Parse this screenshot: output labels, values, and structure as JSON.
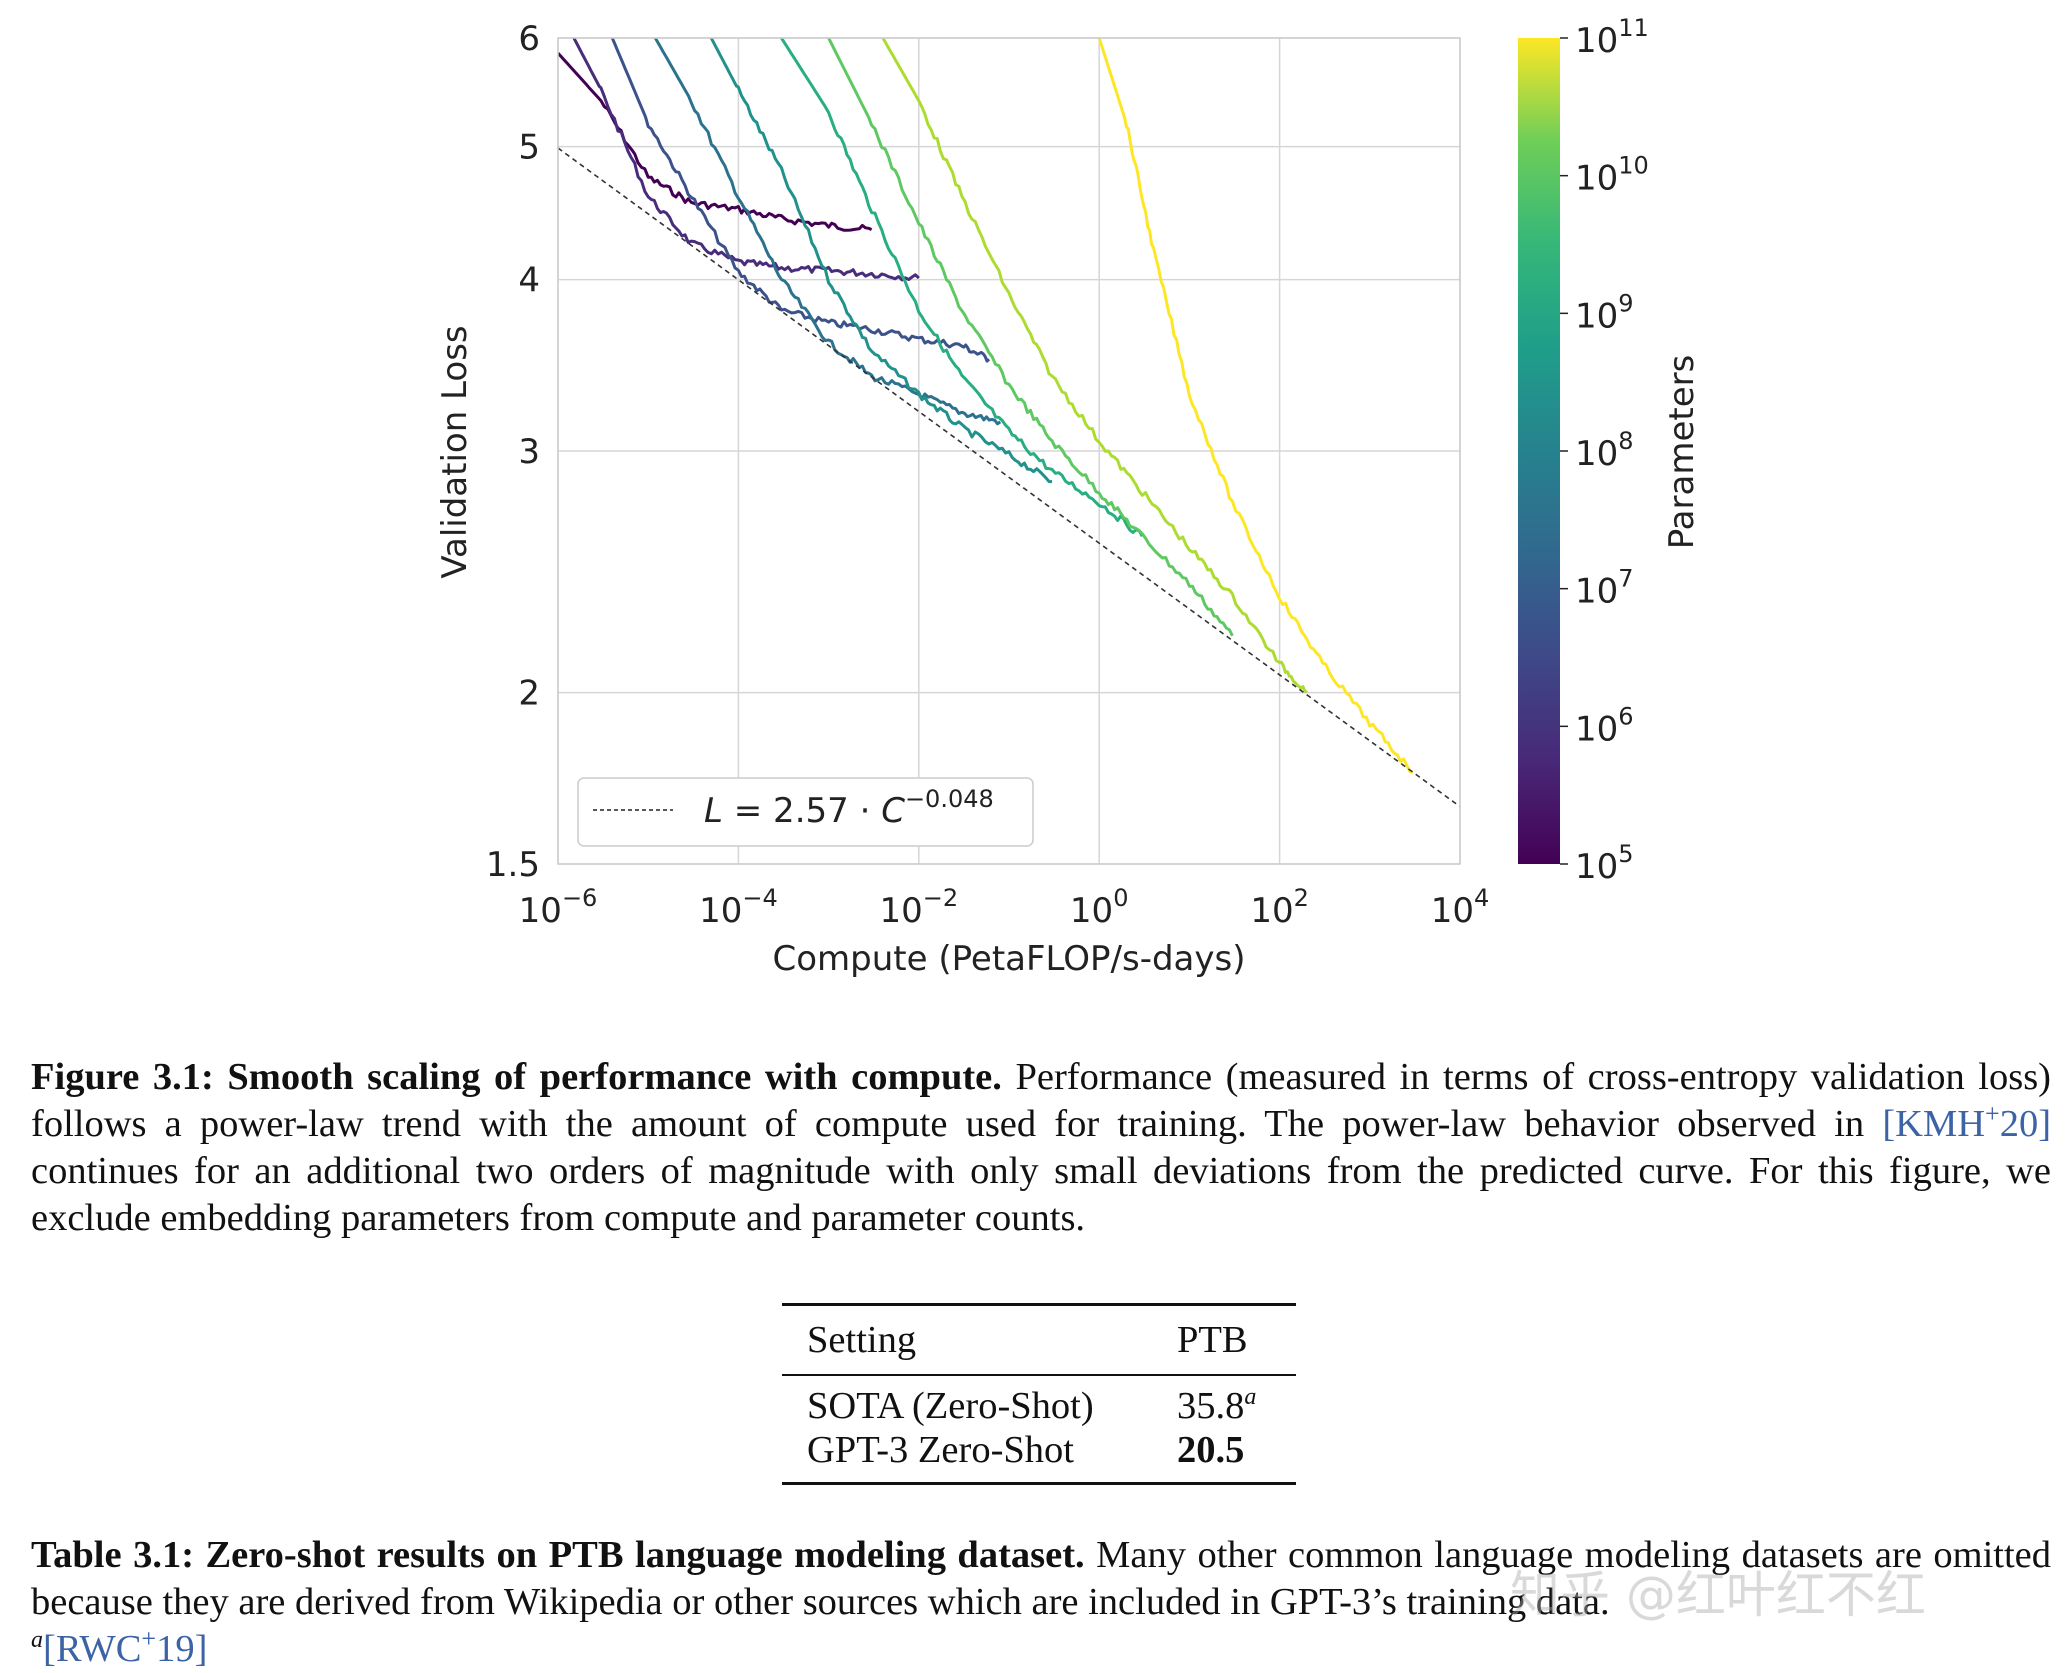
{
  "figure": {
    "chart_data": {
      "type": "line",
      "xscale": "log",
      "yscale": "log",
      "xlabel": "Compute (PetaFLOP/s-days)",
      "ylabel": "Validation Loss",
      "xlim": [
        1e-06,
        10000.0
      ],
      "ylim": [
        1.5,
        6
      ],
      "x_tick_labels": [
        "10^-6",
        "10^-4",
        "10^-2",
        "10^0",
        "10^2",
        "10^4"
      ],
      "y_tick_labels": [
        "6",
        "5",
        "4",
        "3",
        "2",
        "1.5"
      ],
      "legend": {
        "location": "bottom-left",
        "label": "L = 2.57 · C^-0.048"
      },
      "fit_line": {
        "a": 2.57,
        "b": -0.048,
        "x_range": [
          1e-06,
          10000.0
        ]
      },
      "colorbar": {
        "label": "Parameters",
        "colormap": "viridis",
        "range": [
          100000.0,
          100000000000.0
        ],
        "tick_labels": [
          "10^11",
          "10^10",
          "10^9",
          "10^8",
          "10^7",
          "10^6",
          "10^5"
        ]
      },
      "series": [
        {
          "params": 100000.0,
          "color": "#440154",
          "x": [
            1e-06,
            3e-06,
            1e-05,
            3e-05,
            0.0001,
            0.0003,
            0.001,
            0.003
          ],
          "y": [
            5.85,
            5.4,
            4.75,
            4.55,
            4.5,
            4.43,
            4.38,
            4.35
          ]
        },
        {
          "params": 300000.0,
          "color": "#472d7b",
          "x": [
            1.5e-06,
            3e-06,
            1e-05,
            3e-05,
            0.0001,
            0.0003,
            0.001,
            0.003,
            0.01
          ],
          "y": [
            6.0,
            5.5,
            4.6,
            4.25,
            4.12,
            4.08,
            4.06,
            4.04,
            4.01
          ]
        },
        {
          "params": 1000000.0,
          "color": "#3b528b",
          "x": [
            4e-06,
            1e-05,
            3e-05,
            0.0001,
            0.0003,
            0.001,
            0.003,
            0.01,
            0.03,
            0.06
          ],
          "y": [
            6.0,
            5.2,
            4.6,
            4.05,
            3.8,
            3.72,
            3.68,
            3.62,
            3.58,
            3.5
          ]
        },
        {
          "params": 3000000.0,
          "color": "#2c728e",
          "x": [
            1.2e-05,
            3e-05,
            0.0001,
            0.0003,
            0.001,
            0.003,
            0.01,
            0.03,
            0.08
          ],
          "y": [
            6.0,
            5.4,
            4.6,
            4.0,
            3.6,
            3.4,
            3.3,
            3.2,
            3.15
          ]
        },
        {
          "params": 10000000.0,
          "color": "#21918c",
          "x": [
            5e-05,
            0.0001,
            0.0003,
            0.001,
            0.003,
            0.01,
            0.03,
            0.1,
            0.3
          ],
          "y": [
            6.0,
            5.5,
            4.8,
            4.0,
            3.55,
            3.3,
            3.12,
            2.98,
            2.85
          ]
        },
        {
          "params": 30000000.0,
          "color": "#28ae80",
          "x": [
            0.0003,
            0.001,
            0.003,
            0.01,
            0.03,
            0.1,
            0.3,
            1,
            3
          ],
          "y": [
            6.0,
            5.3,
            4.5,
            3.8,
            3.4,
            3.1,
            2.9,
            2.75,
            2.6
          ]
        },
        {
          "params": 100000000.0,
          "color": "#5ec962",
          "x": [
            0.001,
            0.003,
            0.01,
            0.03,
            0.1,
            0.3,
            1,
            3,
            10,
            30
          ],
          "y": [
            6.0,
            5.2,
            4.4,
            3.8,
            3.35,
            3.05,
            2.8,
            2.6,
            2.4,
            2.2
          ]
        },
        {
          "params": 1000000000.0,
          "color": "#addc30",
          "x": [
            0.004,
            0.01,
            0.03,
            0.1,
            0.3,
            1,
            3,
            10,
            30,
            100,
            200
          ],
          "y": [
            6.0,
            5.4,
            4.6,
            3.9,
            3.4,
            3.05,
            2.8,
            2.55,
            2.35,
            2.1,
            2.0
          ]
        },
        {
          "params": 100000000000.0,
          "color": "#fde725",
          "x": [
            1,
            2,
            4,
            10,
            30,
            100,
            300,
            1000,
            3000
          ],
          "y": [
            6.0,
            5.2,
            4.2,
            3.3,
            2.75,
            2.35,
            2.1,
            1.9,
            1.75
          ]
        }
      ]
    }
  },
  "figure_caption": {
    "label": "Figure 3.1:",
    "title": "Smooth scaling of performance with compute.",
    "text1": "Performance (measured in terms of cross-entropy validation loss) follows a power-law trend with the amount of compute used for training. The power-law behavior observed in",
    "cite_open": "[",
    "cite_name": "KMH",
    "cite_sup": "+",
    "cite_year": "20",
    "cite_close": "]",
    "text2": "continues for an additional two orders of magnitude with only small deviations from the predicted curve. For this figure, we exclude embedding parameters from compute and parameter counts."
  },
  "table": {
    "headers": [
      "Setting",
      "PTB"
    ],
    "rows": [
      {
        "setting": "SOTA (Zero-Shot)",
        "value": "35.8",
        "footnote": "a"
      },
      {
        "setting": "GPT-3 Zero-Shot",
        "value": "20.5"
      }
    ]
  },
  "table_caption": {
    "label": "Table 3.1:",
    "title": "Zero-shot results on PTB language modeling dataset.",
    "text": "Many other common language modeling datasets are omitted because they are derived from Wikipedia or other sources which are included in GPT-3’s training data.",
    "footnote_mark": "a",
    "cite_open": "[",
    "cite_name": "RWC",
    "cite_sup": "+",
    "cite_year": "19",
    "cite_close": "]"
  },
  "watermark": "知乎 @红叶红不红"
}
